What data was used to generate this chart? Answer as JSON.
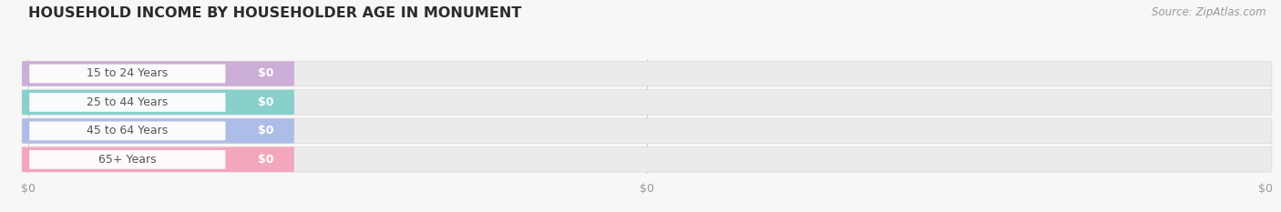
{
  "title": "HOUSEHOLD INCOME BY HOUSEHOLDER AGE IN MONUMENT",
  "source": "Source: ZipAtlas.com",
  "categories": [
    "15 to 24 Years",
    "25 to 44 Years",
    "45 to 64 Years",
    "65+ Years"
  ],
  "values": [
    0,
    0,
    0,
    0
  ],
  "bar_colors": [
    "#c9a8d4",
    "#7ececa",
    "#a8b8e8",
    "#f4a0b8"
  ],
  "track_color": "#ebebeb",
  "background_color": "#f7f7f7",
  "title_fontsize": 11.5,
  "label_fontsize": 9,
  "source_fontsize": 8.5,
  "value_fontsize": 9,
  "tick_fontsize": 9,
  "xlim": [
    0,
    1
  ],
  "xticks": [
    0.0,
    0.5,
    1.0
  ],
  "xtick_labels": [
    "$0",
    "$0",
    "$0"
  ]
}
